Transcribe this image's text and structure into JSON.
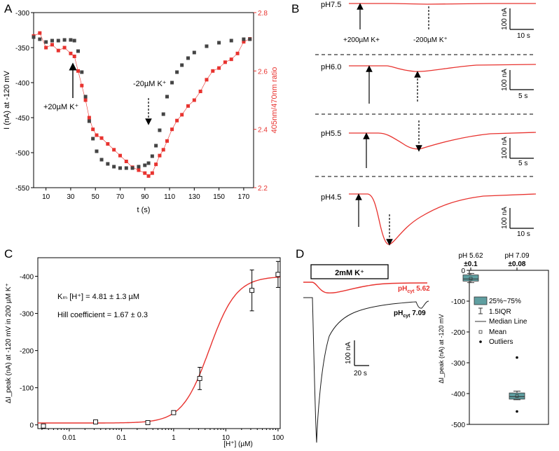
{
  "panel_letters": [
    "A",
    "B",
    "C",
    "D"
  ],
  "colors": {
    "black_series": "#444444",
    "red_series": "#e8332f",
    "trace_black": "#1a1a1a",
    "box_fill": "#5f9ea0",
    "fit_red": "#e8332f"
  },
  "panelA": {
    "ylabel_left": "I (nA) at -120 mV",
    "ylabel_right": "405nm/470nm ratio",
    "xlabel": "t (s)",
    "annot_add": "+20µM K⁺",
    "annot_remove": "-20µM K⁺",
    "chart_data": {
      "type": "scatter",
      "xlabel": "t (s)",
      "xlim": [
        0,
        178
      ],
      "ylim_left": [
        -550,
        -300
      ],
      "ylim_right": [
        2.2,
        2.8
      ],
      "x_ticks": [
        10,
        30,
        50,
        70,
        90,
        110,
        130,
        150,
        170
      ],
      "y_left_ticks": [
        -300,
        -350,
        -400,
        -450,
        -500,
        -550
      ],
      "y_right_ticks": [
        2.2,
        2.4,
        2.6,
        2.8
      ],
      "series": [
        {
          "axis": "left",
          "x": [
            0,
            5,
            10,
            15,
            20,
            25,
            30,
            33,
            36,
            39,
            42,
            45,
            48,
            51,
            55,
            60,
            65,
            70,
            75,
            80,
            85,
            90,
            93,
            96,
            99,
            102,
            105,
            108,
            112,
            116,
            120,
            125,
            130,
            140,
            150,
            160,
            170,
            175
          ],
          "values": [
            -335,
            -338,
            -342,
            -340,
            -340,
            -339,
            -339,
            -340,
            -355,
            -385,
            -420,
            -455,
            -480,
            -498,
            -510,
            -516,
            -520,
            -522,
            -522,
            -522,
            -520,
            -518,
            -515,
            -505,
            -490,
            -468,
            -445,
            -420,
            -400,
            -385,
            -375,
            -365,
            -357,
            -348,
            -343,
            -340,
            -338,
            -338
          ]
        },
        {
          "axis": "right",
          "x": [
            0,
            5,
            10,
            15,
            20,
            25,
            30,
            33,
            36,
            39,
            42,
            45,
            48,
            51,
            55,
            60,
            65,
            70,
            75,
            80,
            85,
            90,
            93,
            96,
            99,
            102,
            105,
            108,
            112,
            116,
            120,
            125,
            130,
            135,
            140,
            145,
            150,
            155,
            160,
            165,
            170,
            175
          ],
          "values": [
            2.72,
            2.73,
            2.68,
            2.69,
            2.67,
            2.68,
            2.66,
            2.65,
            2.6,
            2.55,
            2.5,
            2.44,
            2.4,
            2.38,
            2.37,
            2.35,
            2.33,
            2.31,
            2.29,
            2.27,
            2.26,
            2.25,
            2.24,
            2.25,
            2.28,
            2.31,
            2.33,
            2.36,
            2.4,
            2.43,
            2.45,
            2.48,
            2.5,
            2.53,
            2.57,
            2.6,
            2.61,
            2.63,
            2.64,
            2.66,
            2.7,
            2.71
          ]
        }
      ]
    }
  },
  "panelB": {
    "rows": [
      {
        "label": "pH7.5",
        "scale_y": "100 nA",
        "scale_x": "10 s",
        "annot_add": "+200µM K+",
        "annot_remove": "-200µM K⁺"
      },
      {
        "label": "pH6.0",
        "scale_y": "100 nA",
        "scale_x": "5 s"
      },
      {
        "label": "pH5.5",
        "scale_y": "100 nA",
        "scale_x": "5 s"
      },
      {
        "label": "pH4.5",
        "scale_y": "100 nA",
        "scale_x": "10 s"
      }
    ]
  },
  "panelC": {
    "ylabel": "ΔI_peak (nA) at -120 mV in 200 µM K⁺",
    "xlabel": "[H⁺] (µM)",
    "km_text": "Kₘ [H⁺] = 4.81 ± 1.3 µM",
    "hill_text": "Hill coefficient = 1.67 ± 0.3",
    "chart_data": {
      "type": "scatter",
      "xscale": "log",
      "xlim": [
        0.0025,
        110
      ],
      "ylim": [
        10,
        -450
      ],
      "x_tick_labels": [
        "0.01",
        "0.1",
        "1",
        "10",
        "100"
      ],
      "y_ticks": [
        0,
        -100,
        -200,
        -300,
        -400
      ],
      "x": [
        0.0032,
        0.032,
        0.32,
        1.0,
        3.16,
        31.6,
        100
      ],
      "values": [
        3,
        -8,
        -6,
        -33,
        -125,
        -362,
        -405
      ],
      "errors": [
        4,
        3,
        4,
        5,
        30,
        55,
        35
      ],
      "fit": {
        "type": "hill",
        "Km": 4.81,
        "n": 1.67,
        "Imax": -400,
        "Imin": -5
      }
    }
  },
  "panelD": {
    "bar_label": "2mM K⁺",
    "trace1_label": "pH",
    "trace1_sub": "cyt",
    "trace1_val": " 5.62",
    "trace2_label": "pH",
    "trace2_sub": "cyt",
    "trace2_val": " 7.09",
    "scale_y": "100 nA",
    "scale_x": "20 s",
    "box": {
      "ylabel": "ΔI_peak (nA) at -120 mV",
      "cat1_a": "pH 5.62",
      "cat1_b": "±0.1",
      "cat2_a": "pH 7.09",
      "cat2_b": "±0.08",
      "legend": [
        "25%~75%",
        "1.5IQR",
        "Median Line",
        "Mean",
        "Outliers"
      ],
      "chart_data": {
        "type": "box",
        "categories": [
          "pH 5.62 ±0.1",
          "pH 7.09 ±0.08"
        ],
        "ylim": [
          0,
          -500
        ],
        "y_ticks": [
          0,
          -100,
          -200,
          -300,
          -400,
          -500
        ],
        "boxes": [
          {
            "q1": -35,
            "median": -28,
            "q3": -15,
            "whisker_low": -40,
            "whisker_high": -10,
            "mean": -27,
            "outliers": []
          },
          {
            "q1": -418,
            "median": -410,
            "q3": -398,
            "whisker_low": -420,
            "whisker_high": -392,
            "mean": -408,
            "outliers": [
              -283,
              -458
            ]
          }
        ]
      }
    }
  }
}
